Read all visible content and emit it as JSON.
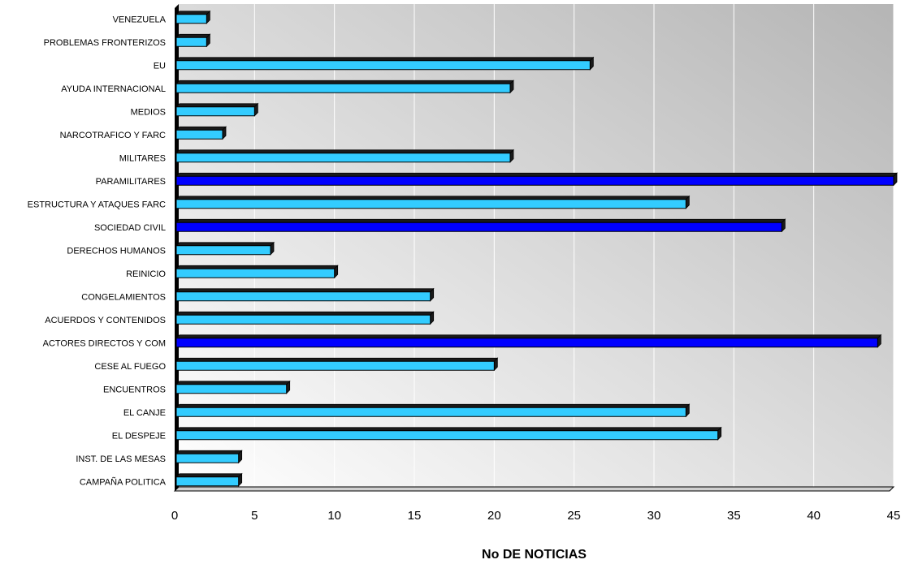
{
  "chart_data": {
    "type": "bar",
    "orientation": "horizontal",
    "title": "",
    "xlabel": "No DE NOTICIAS",
    "ylabel": "",
    "xlim": [
      0,
      45
    ],
    "x_ticks": [
      0,
      5,
      10,
      15,
      20,
      25,
      30,
      35,
      40,
      45
    ],
    "grid": "vertical",
    "legend": "none",
    "categories": [
      "VENEZUELA",
      "PROBLEMAS FRONTERIZOS",
      "EU",
      "AYUDA INTERNACIONAL",
      "MEDIOS",
      "NARCOTRAFICO Y FARC",
      "MILITARES",
      "PARAMILITARES",
      "ESTRUCTURA Y ATAQUES FARC",
      "SOCIEDAD CIVIL",
      "DERECHOS HUMANOS",
      "REINICIO",
      "CONGELAMIENTOS",
      "ACUERDOS Y CONTENIDOS",
      "ACTORES DIRECTOS Y COM",
      "CESE AL FUEGO",
      "ENCUENTROS",
      "EL CANJE",
      "EL DESPEJE",
      "INST. DE LAS MESAS",
      "CAMPAÑA POLITICA"
    ],
    "values": [
      2,
      2,
      26,
      21,
      5,
      3,
      21,
      45,
      32,
      38,
      6,
      10,
      16,
      16,
      44,
      20,
      7,
      32,
      34,
      4,
      4
    ],
    "highlighted": [
      "PARAMILITARES",
      "SOCIEDAD CIVIL",
      "ACTORES DIRECTOS Y COM"
    ],
    "colors": {
      "bar": "#33ccff",
      "bar_highlight": "#0000ff",
      "bar_edge": "#000000",
      "bar_shadow": "#1a1a1a",
      "grid": "#ffffff",
      "plot_bg_top": "#b5b5b5",
      "plot_bg_bottom": "#ffffff",
      "axis": "#000000"
    }
  }
}
